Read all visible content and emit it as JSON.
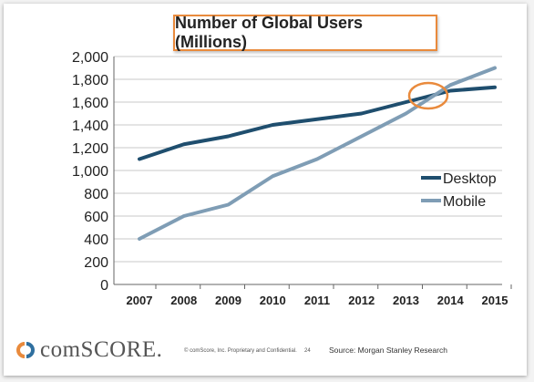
{
  "chart_data": {
    "type": "line",
    "title": "Number of Global Users (Millions)",
    "x": [
      "2007",
      "2008",
      "2009",
      "2010",
      "2011",
      "2012",
      "2013",
      "2014",
      "2015"
    ],
    "series": [
      {
        "name": "Desktop",
        "color": "#1f4e6e",
        "values": [
          1100,
          1230,
          1300,
          1400,
          1450,
          1500,
          1600,
          1700,
          1730
        ]
      },
      {
        "name": "Mobile",
        "color": "#7f9db5",
        "values": [
          400,
          600,
          700,
          950,
          1100,
          1300,
          1500,
          1750,
          1900
        ]
      }
    ],
    "ylim": [
      0,
      2000
    ],
    "yticks": [
      "0",
      "200",
      "400",
      "600",
      "800",
      "1,000",
      "1,200",
      "1,400",
      "1,600",
      "1,800",
      "2,000"
    ],
    "grid": true,
    "legend_position": "right",
    "annotation": "orange circle at Desktop/Mobile crossover (2013-2014)",
    "annotation_color": "#e98a3c"
  },
  "footer": {
    "logo_text": "comSCORE.",
    "fine_print": "© comScore, Inc.  Proprietary and Confidential.",
    "page_number": "24",
    "source": "Source: Morgan Stanley Research"
  }
}
